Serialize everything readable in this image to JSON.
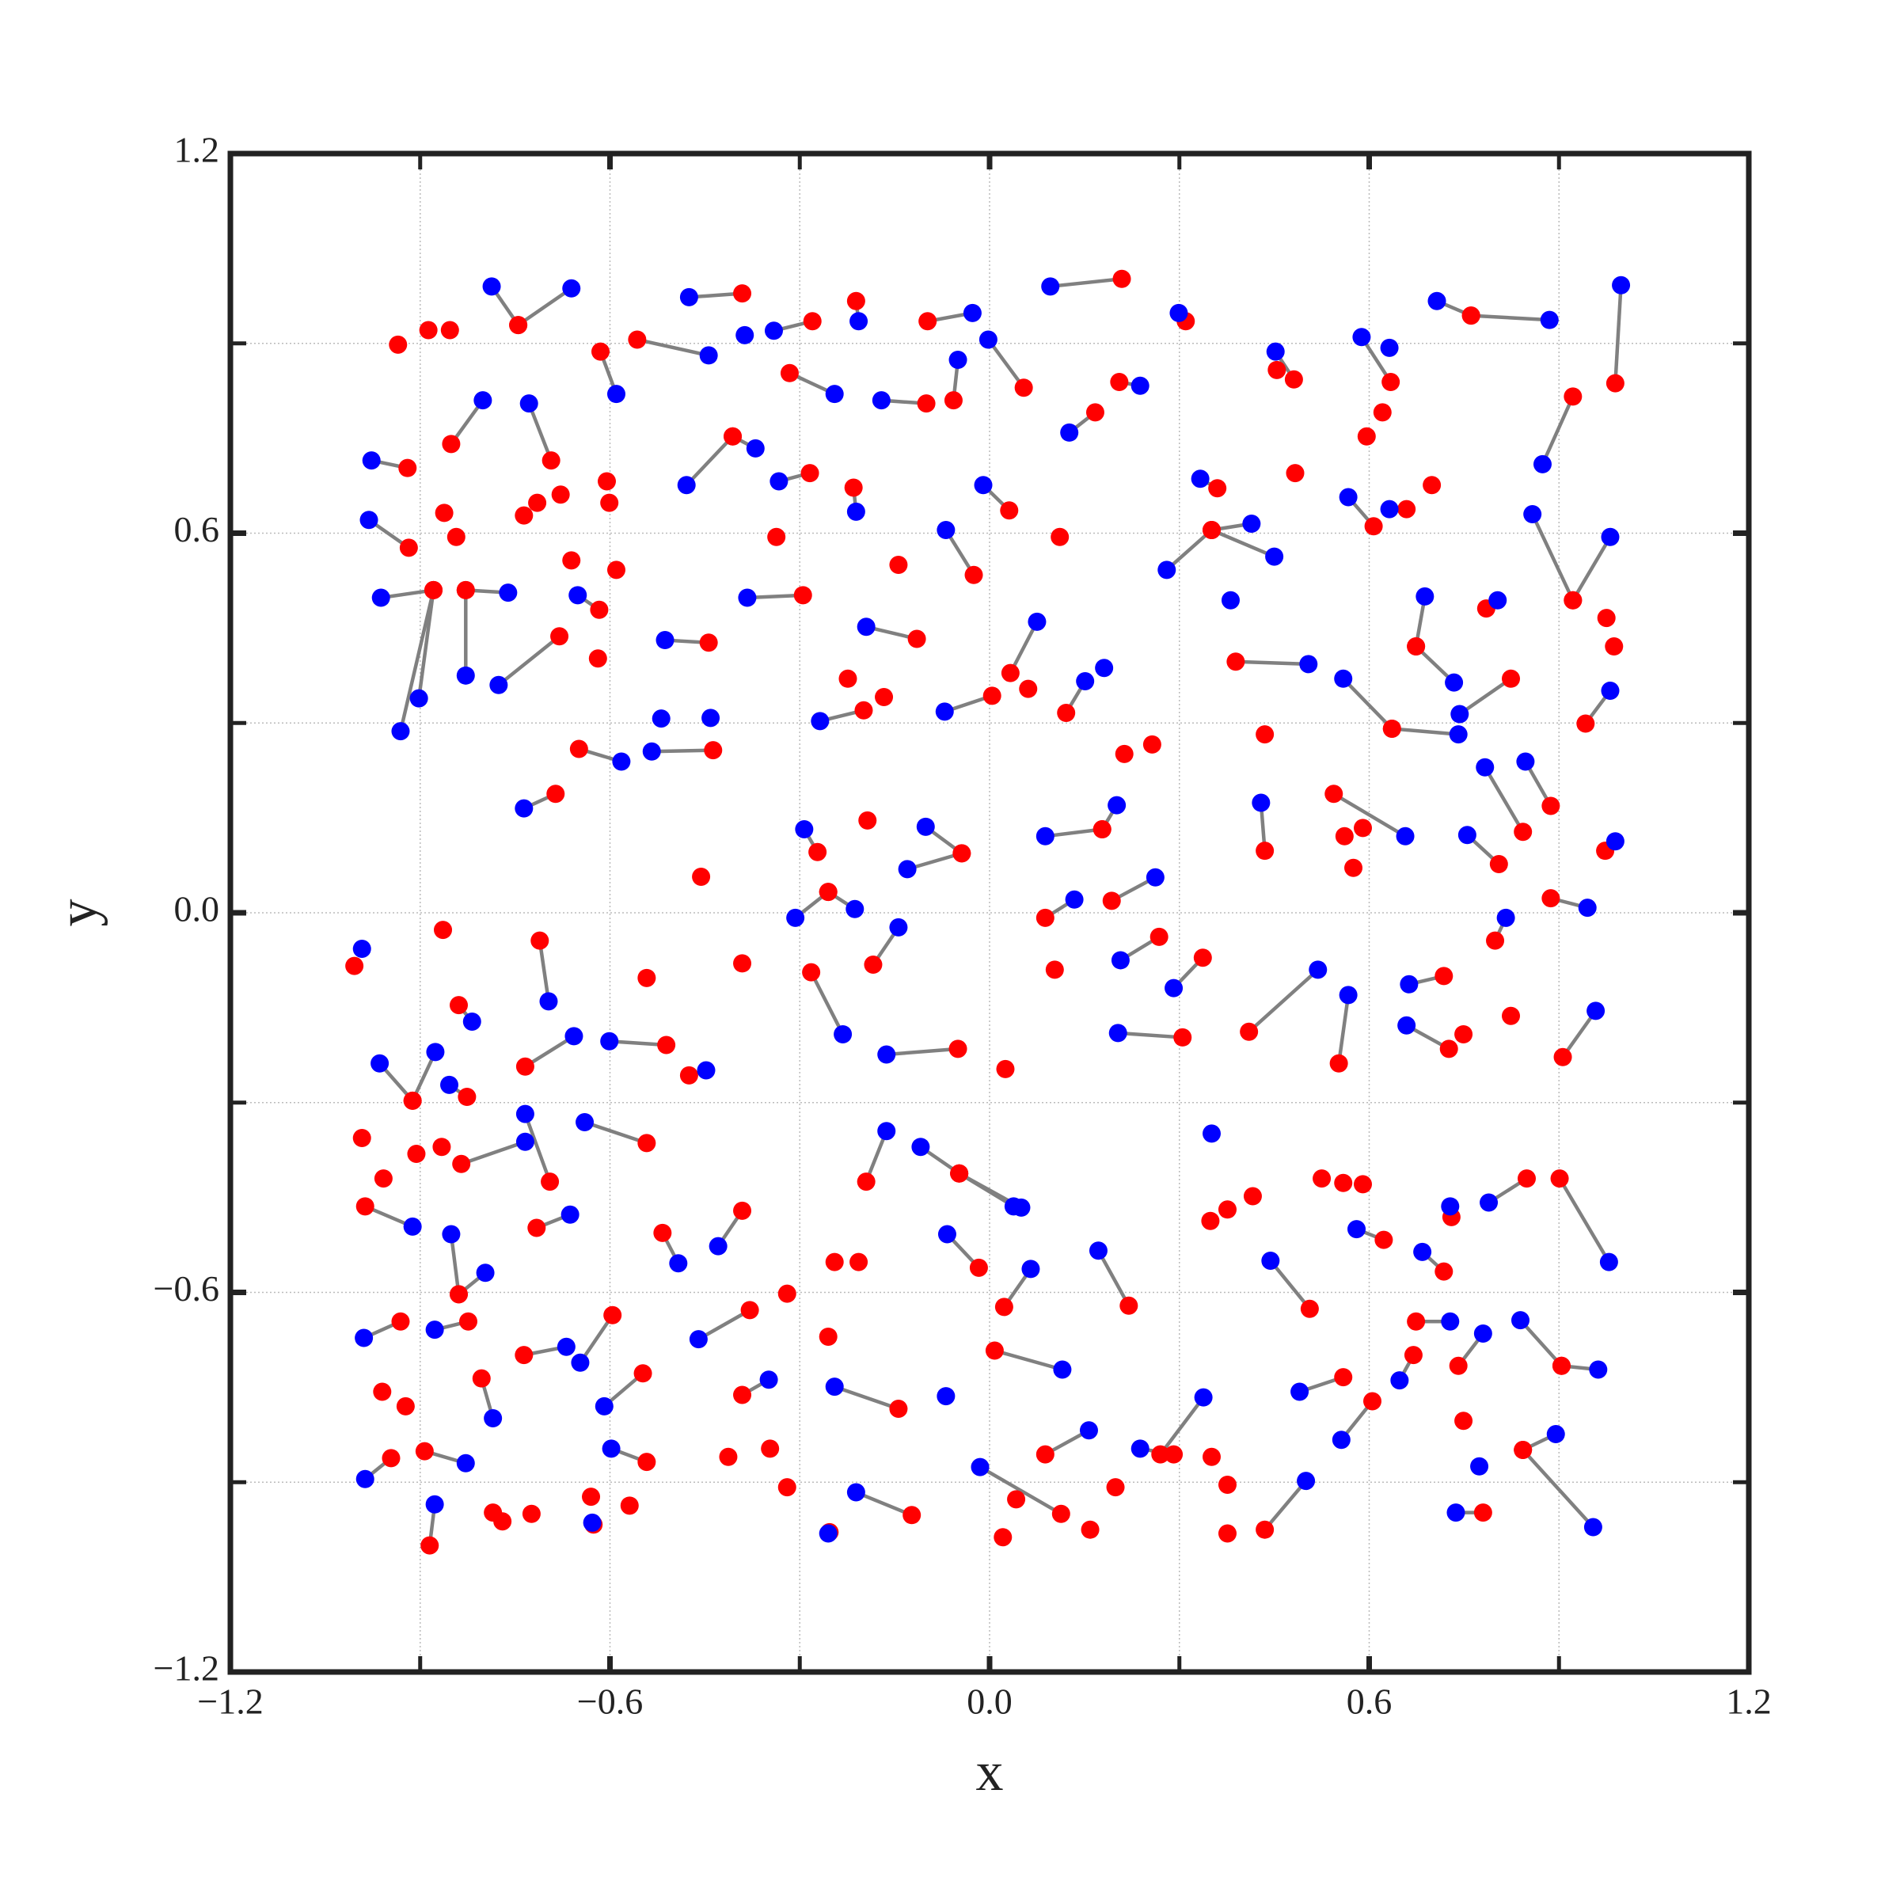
{
  "chart_data": {
    "type": "scatter",
    "xlabel": "x",
    "ylabel": "y",
    "xlim": [
      -1.2,
      1.2
    ],
    "ylim": [
      -1.2,
      1.2
    ],
    "xticks": [
      {
        "value": -1.2,
        "label": "−1.2"
      },
      {
        "value": -0.6,
        "label": "−0.6"
      },
      {
        "value": 0,
        "label": "0.0"
      },
      0.6,
      1.2
    ],
    "yticks": [
      {
        "value": -1.2,
        "label": "−1.2"
      },
      {
        "value": -0.6,
        "label": "−0.6"
      },
      {
        "value": 0,
        "label": "0.0"
      },
      0.6,
      1.2
    ],
    "minor_ticks": [
      -0.9,
      -0.3,
      0.3,
      0.9
    ],
    "grid": true,
    "links": {
      "from": 0,
      "to": 1,
      "color": "#808080"
    },
    "series": [
      {
        "color": "#ff0000",
        "x": [
          -0.745,
          -0.745,
          -0.391,
          -0.557,
          -0.28,
          -0.211,
          -0.098,
          0.209,
          0.31,
          0.761,
          0.761,
          0.989,
          0.922,
          0.634,
          0.481,
          0.36,
          0.205,
          0.167,
          0.054,
          -0.057,
          -0.1,
          -0.316,
          -0.615,
          -0.851,
          -0.92,
          -0.693,
          -0.406,
          -0.406,
          -0.215,
          -0.284,
          0.031,
          -0.025,
          0.351,
          0.351,
          0.351,
          0.607,
          0.659,
          0.922,
          0.922,
          0.785,
          0.674,
          0.674,
          0.636,
          0.636,
          0.389,
          0.824,
          0.942,
          0.121,
          0.004,
          0.033,
          -0.115,
          -0.199,
          -0.295,
          -0.444,
          -0.68,
          -0.828,
          -0.828,
          -0.879,
          -0.879,
          -0.879,
          -0.918,
          -0.617,
          -0.437,
          -0.649,
          -0.686,
          -0.272,
          -0.255,
          -0.255,
          -0.044,
          -0.044,
          0.178,
          0.178,
          0.193,
          0.088,
          0.435,
          0.544,
          0.805,
          0.843,
          0.887,
          0.973,
          0.887,
          0.799,
          0.718,
          0.726,
          0.906,
          0.41,
          0.552,
          0.305,
          0.337,
          0.268,
          -0.05,
          -0.184,
          -0.282,
          -0.511,
          -0.475,
          -0.734,
          -0.912,
          -0.912,
          -0.826,
          -0.839,
          -0.711,
          -0.542,
          -0.695,
          -0.835,
          -0.987,
          -0.824,
          -0.839,
          -0.839,
          -0.931,
          -0.716,
          -0.517,
          -0.391,
          -0.195,
          -0.048,
          -0.048,
          -0.048,
          -0.017,
          0.023,
          0.22,
          0.27,
          0.291,
          0.435,
          0.506,
          0.559,
          0.605,
          0.623,
          0.674,
          0.718,
          0.67,
          0.741,
          0.904,
          0.904,
          0.843,
          0.843,
          0.78,
          0.849,
          0.901,
          0.73,
          -0.144,
          -0.253,
          -0.123,
          0.113,
          0.088,
          0.008,
          -0.379,
          -0.391,
          -0.596,
          -0.736,
          -0.803,
          -0.893,
          -0.946,
          -0.885,
          -0.548,
          -0.542,
          -0.626
        ],
        "y": [
          0.929,
          0.929,
          0.979,
          0.906,
          0.935,
          0.967,
          0.935,
          1.002,
          0.935,
          0.944,
          0.944,
          0.837,
          0.816,
          0.839,
          0.843,
          0.671,
          0.839,
          0.791,
          0.83,
          0.81,
          0.805,
          0.853,
          0.887,
          0.741,
          0.703,
          0.715,
          0.753,
          0.753,
          0.672,
          0.695,
          0.636,
          0.534,
          0.605,
          0.605,
          0.605,
          0.611,
          0.638,
          0.494,
          0.494,
          0.481,
          0.421,
          0.421,
          0.291,
          0.291,
          0.397,
          0.37,
          0.299,
          0.316,
          0.343,
          0.379,
          0.433,
          0.32,
          0.502,
          0.427,
          0.437,
          0.51,
          0.51,
          0.51,
          0.51,
          0.51,
          0.577,
          0.479,
          0.257,
          0.259,
          0.188,
          0.096,
          0.033,
          0.033,
          0.094,
          0.094,
          0.132,
          0.132,
          0.019,
          -0.008,
          0.098,
          0.188,
          0.077,
          0.128,
          0.169,
          0.098,
          0.023,
          -0.044,
          -0.1,
          -0.215,
          -0.228,
          -0.188,
          -0.238,
          -0.197,
          -0.071,
          -0.038,
          -0.215,
          -0.082,
          -0.094,
          -0.209,
          -0.257,
          -0.243,
          -0.297,
          -0.297,
          -0.291,
          -0.146,
          -0.044,
          -0.364,
          -0.425,
          -0.397,
          -0.464,
          -0.646,
          -0.603,
          -0.603,
          -0.646,
          -0.498,
          -0.506,
          -0.471,
          -0.425,
          -0.412,
          -0.412,
          -0.412,
          -0.561,
          -0.623,
          -0.621,
          -0.856,
          -0.856,
          -0.975,
          -0.626,
          -0.734,
          -0.772,
          -0.517,
          -0.646,
          -0.567,
          -0.699,
          -0.716,
          -0.716,
          -0.716,
          -0.849,
          -0.849,
          -0.948,
          -0.42,
          -0.42,
          -0.481,
          -0.784,
          -0.979,
          -0.952,
          -0.95,
          -0.856,
          -0.692,
          -0.628,
          -0.762,
          -0.636,
          -0.699,
          -0.736,
          -0.851,
          -0.862,
          -1.0,
          -0.728,
          -0.868,
          -0.967
        ]
      },
      {
        "color": "#0000ff",
        "x": [
          -0.661,
          -0.787,
          -0.475,
          -0.444,
          -0.341,
          -0.207,
          -0.027,
          0.096,
          0.299,
          0.707,
          0.885,
          0.998,
          0.874,
          0.588,
          0.452,
          0.333,
          0.238,
          0.126,
          -0.002,
          -0.05,
          -0.171,
          -0.245,
          -0.59,
          -0.801,
          -0.977,
          -0.728,
          -0.479,
          -0.37,
          -0.211,
          -0.333,
          -0.01,
          -0.069,
          0.414,
          0.45,
          0.28,
          0.567,
          0.632,
          0.858,
          0.981,
          0.803,
          0.688,
          0.734,
          0.741,
          0.559,
          0.504,
          0.743,
          0.981,
          0.151,
          -0.071,
          0.075,
          -0.195,
          -0.268,
          -0.383,
          -0.513,
          -0.776,
          -0.761,
          -0.828,
          -0.931,
          -0.902,
          -0.962,
          -0.981,
          -0.651,
          -0.534,
          -0.582,
          -0.736,
          -0.293,
          -0.307,
          -0.213,
          -0.101,
          -0.13,
          0.201,
          0.088,
          0.262,
          0.134,
          0.429,
          0.657,
          0.755,
          0.783,
          0.847,
          0.989,
          0.945,
          0.816,
          0.663,
          0.659,
          0.958,
          0.519,
          0.567,
          0.203,
          0.291,
          0.207,
          -0.163,
          -0.144,
          -0.232,
          -0.601,
          -0.448,
          -0.657,
          -0.964,
          -0.876,
          -0.854,
          -0.818,
          -0.697,
          -0.64,
          -0.734,
          -0.734,
          -0.912,
          -0.877,
          -0.797,
          -0.851,
          -0.989,
          -0.663,
          -0.492,
          -0.429,
          -0.163,
          0.038,
          -0.109,
          0.05,
          -0.067,
          0.065,
          0.172,
          0.338,
          0.238,
          0.5,
          0.444,
          0.49,
          0.556,
          0.58,
          0.728,
          0.684,
          0.648,
          0.78,
          0.839,
          0.962,
          0.954,
          0.895,
          0.737,
          0.789,
          0.979,
          0.728,
          -0.245,
          -0.255,
          -0.211,
          -0.015,
          0.157,
          0.115,
          -0.46,
          -0.349,
          -0.647,
          -0.669,
          -0.785,
          -0.828,
          -0.987,
          -0.877,
          -0.609,
          -0.598,
          -0.628
        ],
        "y": [
          0.987,
          0.99,
          0.973,
          0.881,
          0.92,
          0.935,
          0.948,
          0.99,
          0.948,
          0.967,
          0.937,
          0.992,
          0.709,
          0.91,
          0.887,
          0.686,
          0.833,
          0.759,
          0.906,
          0.874,
          0.81,
          0.82,
          0.82,
          0.81,
          0.715,
          0.805,
          0.676,
          0.734,
          0.634,
          0.682,
          0.676,
          0.605,
          0.615,
          0.563,
          0.542,
          0.657,
          0.638,
          0.63,
          0.594,
          0.494,
          0.5,
          0.364,
          0.282,
          0.37,
          0.393,
          0.314,
          0.351,
          0.366,
          0.318,
          0.46,
          0.452,
          0.303,
          0.498,
          0.431,
          0.36,
          0.506,
          0.375,
          0.287,
          0.339,
          0.498,
          0.621,
          0.502,
          0.255,
          0.239,
          0.165,
          0.132,
          -0.008,
          0.006,
          0.136,
          0.069,
          0.17,
          0.121,
          0.056,
          0.021,
          0.174,
          0.121,
          0.123,
          0.23,
          0.239,
          0.113,
          0.008,
          -0.008,
          -0.113,
          -0.178,
          -0.155,
          -0.09,
          -0.13,
          -0.19,
          -0.119,
          -0.075,
          -0.224,
          -0.023,
          -0.192,
          -0.203,
          -0.249,
          -0.195,
          -0.238,
          -0.22,
          -0.272,
          -0.172,
          -0.14,
          -0.331,
          -0.318,
          -0.362,
          -0.496,
          -0.659,
          -0.569,
          -0.508,
          -0.672,
          -0.477,
          -0.554,
          -0.527,
          -0.345,
          -0.464,
          -0.37,
          -0.466,
          -0.508,
          -0.563,
          -0.534,
          -0.766,
          -0.847,
          -0.898,
          -0.55,
          -0.757,
          -0.833,
          -0.5,
          -0.646,
          -0.536,
          -0.739,
          -0.665,
          -0.644,
          -0.722,
          -0.971,
          -0.824,
          -0.948,
          -0.458,
          -0.552,
          -0.464,
          -0.749,
          -0.981,
          -0.916,
          -0.876,
          -0.818,
          -0.722,
          -0.674,
          -0.738,
          -0.711,
          -0.686,
          -0.799,
          -0.87,
          -0.895,
          -0.935,
          -0.78,
          -0.847,
          -0.964
        ]
      },
      {
        "color": "#ff0000",
        "x": [
          -1.004,
          -0.678,
          -0.715,
          -0.605,
          -0.601,
          -0.661,
          -0.59,
          -0.619,
          -0.337,
          -0.144,
          -0.224,
          -0.167,
          0.061,
          0.111,
          0.213,
          0.257,
          0.435,
          0.561,
          0.59,
          0.575,
          0.749,
          0.824,
          0.025,
          0.103,
          -0.193,
          -0.456,
          -0.391,
          -0.542,
          -0.32,
          -0.245,
          -0.207,
          -0.255,
          0.349,
          0.376,
          0.416,
          0.525,
          0.559,
          0.59,
          0.376,
          0.351,
          0.376,
          0.199,
          0.159,
          0.021,
          0.042,
          -0.32,
          -0.347,
          -0.413,
          -0.569,
          -0.63,
          -0.724,
          -0.785,
          -0.77,
          -0.992,
          -0.958,
          -0.906,
          -0.866,
          -0.864,
          -0.923,
          -0.96,
          0.749,
          0.975,
          0.987,
          -0.935,
          -0.887,
          -0.853,
          -0.862,
          -0.843,
          -0.736,
          0.596,
          0.621,
          0.483,
          0.699,
          0.454
        ],
        "y": [
          -0.084,
          0.661,
          0.648,
          0.682,
          0.648,
          0.557,
          0.542,
          0.402,
          0.594,
          0.55,
          0.37,
          0.341,
          0.354,
          0.594,
          0.251,
          0.266,
          0.282,
          0.121,
          0.134,
          0.071,
          -0.192,
          -0.163,
          -0.247,
          -0.09,
          0.146,
          0.057,
          -0.08,
          -0.103,
          -0.602,
          -0.552,
          -0.552,
          -0.67,
          -0.487,
          -0.469,
          -0.448,
          -0.42,
          -0.427,
          -0.429,
          -0.904,
          -0.86,
          -0.981,
          -0.908,
          -0.975,
          -0.987,
          -0.927,
          -0.908,
          -0.847,
          -0.86,
          -0.937,
          -0.923,
          -0.95,
          -0.948,
          -0.962,
          -0.356,
          -0.42,
          -0.381,
          -0.37,
          -0.027,
          -0.78,
          -0.757,
          -0.803,
          0.466,
          0.421,
          0.898,
          0.921,
          0.921,
          0.632,
          0.594,
          0.628,
          0.753,
          0.791,
          0.695,
          0.676,
          0.858
        ]
      },
      {
        "color": "#0000ff",
        "x": [
          -0.992,
          0.351,
          -0.519,
          -0.441,
          0.381,
          -0.069,
          0.774,
          0.632,
          -0.387,
          0.181
        ],
        "y": [
          -0.057,
          -0.349,
          0.307,
          0.308,
          0.494,
          -0.764,
          -0.875,
          0.893,
          0.913,
          0.387
        ]
      }
    ]
  }
}
